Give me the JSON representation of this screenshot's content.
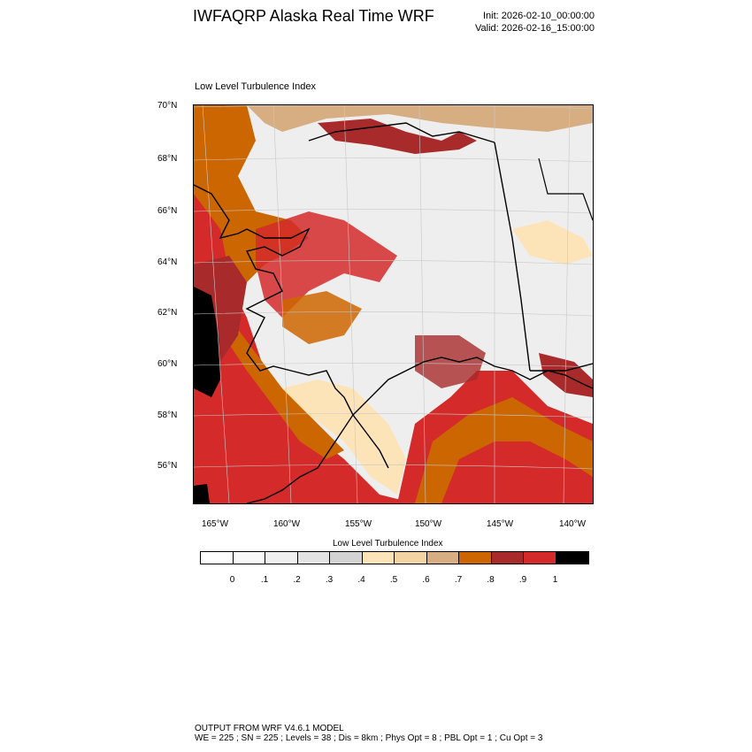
{
  "header": {
    "title": "IWFAQRP Alaska Real Time WRF",
    "init": "Init: 2026-02-10_00:00:00",
    "valid": "Valid: 2026-02-16_15:00:00"
  },
  "map": {
    "subtitle": "Low Level Turbulence Index",
    "lat_ticks": [
      "70°N",
      "68°N",
      "66°N",
      "64°N",
      "62°N",
      "60°N",
      "58°N",
      "56°N"
    ],
    "lon_ticks": [
      "165°W",
      "160°W",
      "155°W",
      "150°W",
      "145°W",
      "140°W"
    ],
    "lat_values": [
      70,
      68,
      66,
      64,
      62,
      60,
      58,
      56
    ],
    "lon_values": [
      -165,
      -160,
      -155,
      -150,
      -145,
      -140
    ]
  },
  "colorbar": {
    "title": "Low Level Turbulence Index",
    "colors": [
      "#ffffff",
      "#f9f9f9",
      "#f0f0f0",
      "#e3e3e3",
      "#d3d3d3",
      "#fde3b8",
      "#f3d3a3",
      "#d6ae82",
      "#cc6600",
      "#a82a2a",
      "#d42a2a",
      "#000000"
    ],
    "labels": [
      "0",
      ".1",
      ".2",
      ".3",
      ".4",
      ".5",
      ".6",
      ".7",
      ".8",
      ".9",
      "1"
    ]
  },
  "footer": {
    "line1": "OUTPUT FROM WRF V4.6.1 MODEL",
    "line2": "WE = 225 ; SN = 225 ; Levels = 38 ; Dis = 8km ; Phys Opt = 8 ; PBL Opt = 1 ; Cu Opt = 3"
  }
}
